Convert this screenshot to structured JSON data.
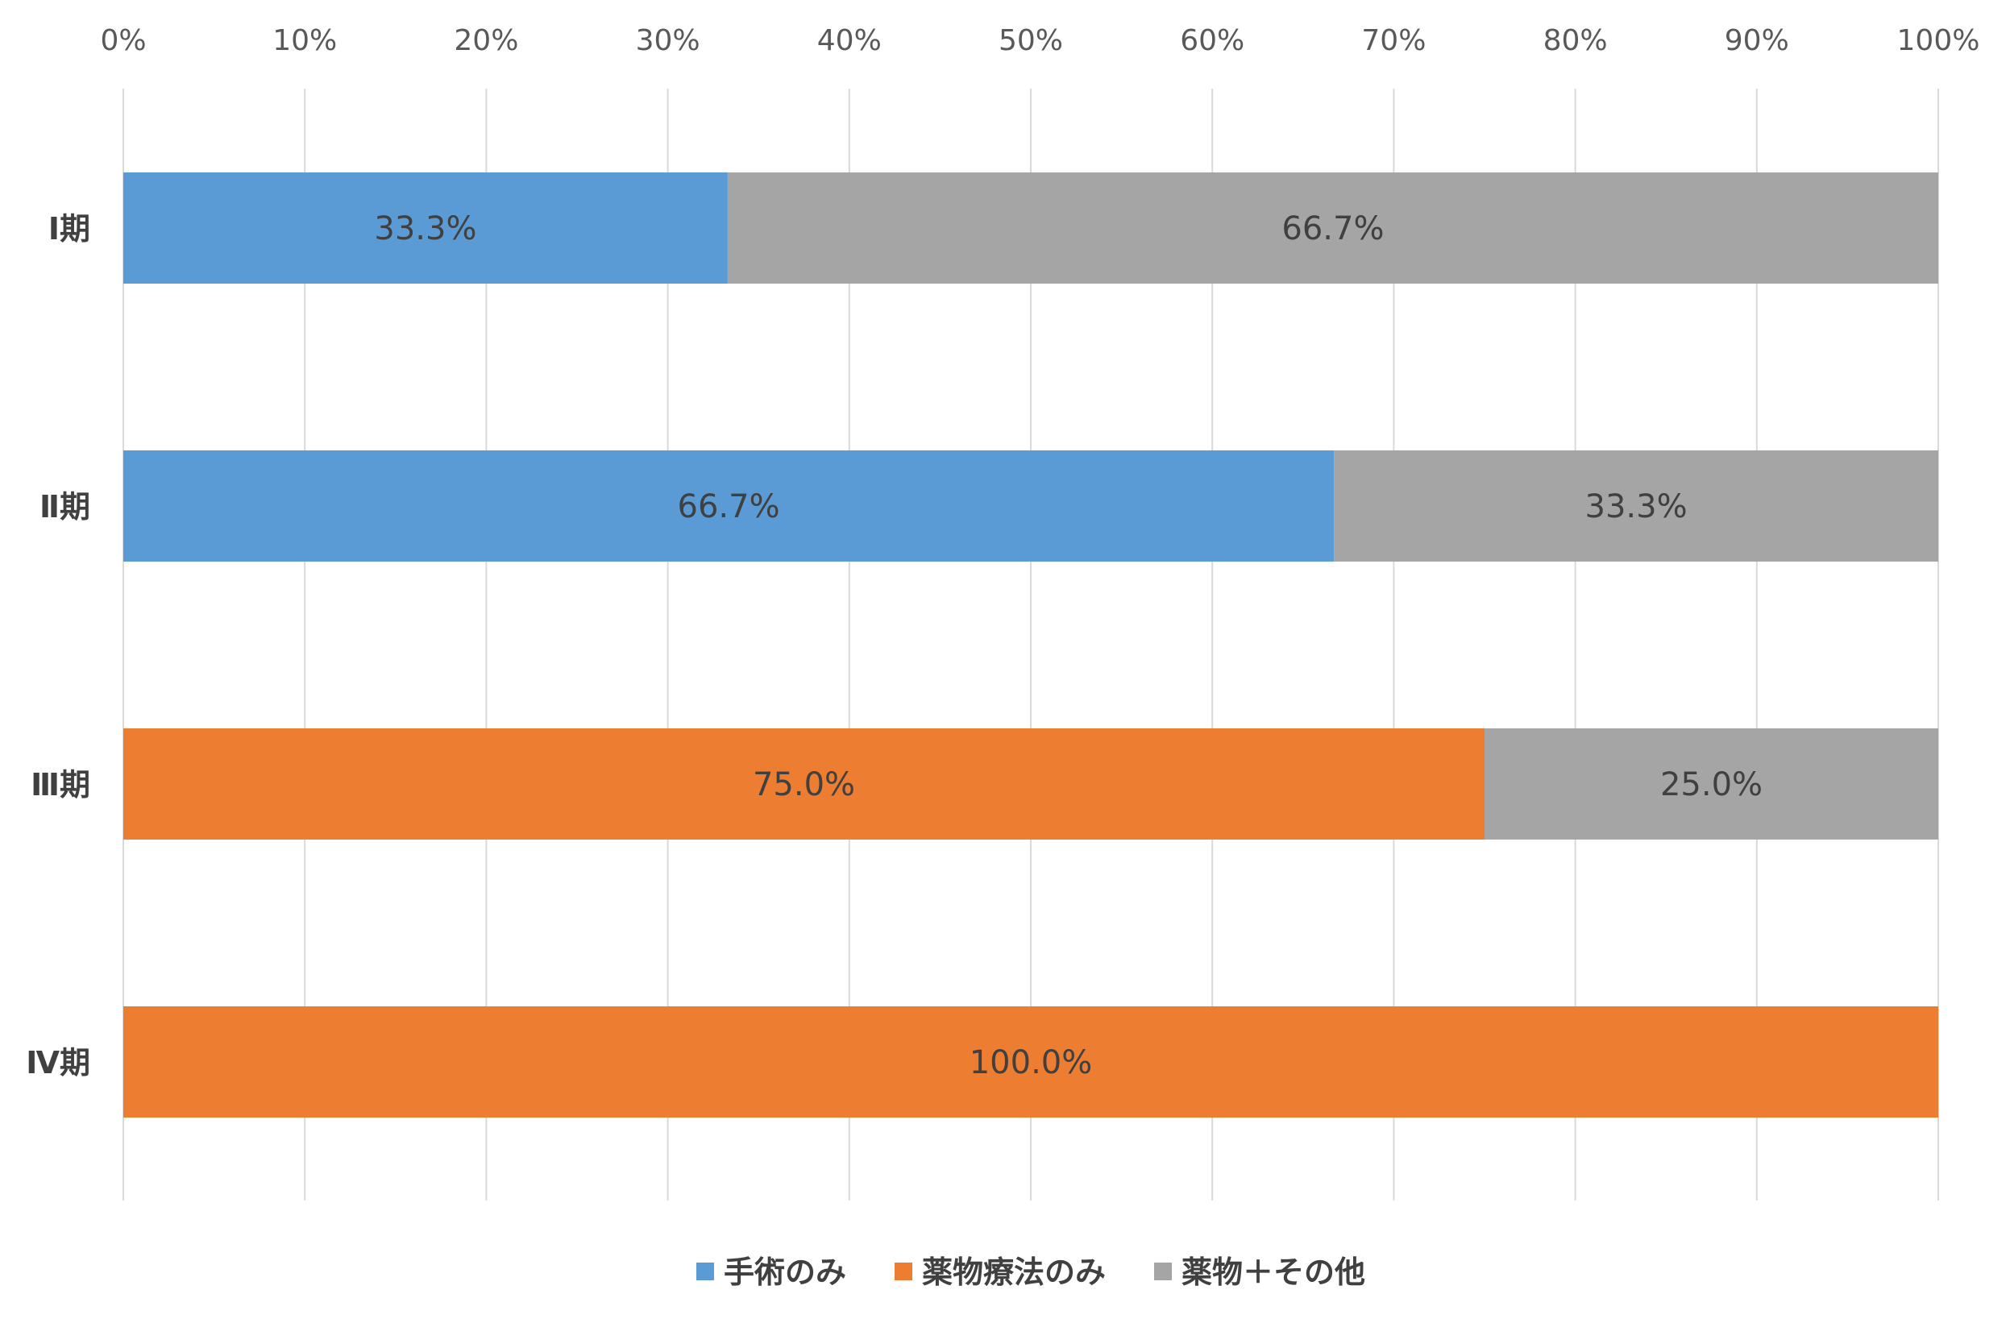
{
  "chart_data": {
    "type": "bar",
    "orientation": "horizontal",
    "stacked": "percent",
    "categories": [
      "Ⅰ期",
      "Ⅱ期",
      "Ⅲ期",
      "Ⅳ期"
    ],
    "series": [
      {
        "name": "手術のみ",
        "color": "#5B9BD5",
        "values": [
          33.3,
          66.7,
          0,
          0
        ]
      },
      {
        "name": "薬物療法のみ",
        "color": "#ED7D31",
        "values": [
          0,
          0,
          75.0,
          100.0
        ]
      },
      {
        "name": "薬物＋その他",
        "color": "#A5A5A5",
        "values": [
          66.7,
          33.3,
          25.0,
          0
        ]
      }
    ],
    "x_ticks": [
      "0%",
      "10%",
      "20%",
      "30%",
      "40%",
      "50%",
      "60%",
      "70%",
      "80%",
      "90%",
      "100%"
    ],
    "xlim": [
      0,
      100
    ],
    "x_axis_position": "top",
    "grid": true,
    "legend_position": "bottom",
    "data_labels": true,
    "title": "",
    "xlabel": "",
    "ylabel": ""
  }
}
